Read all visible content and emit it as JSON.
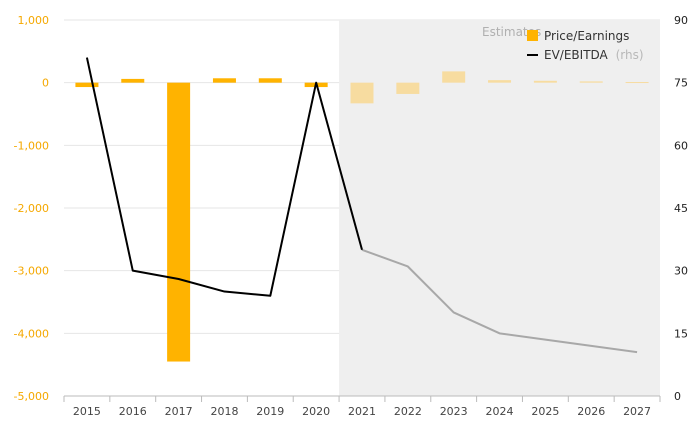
{
  "chart_data": {
    "type": "bar+line",
    "title": "",
    "categories": [
      "2015",
      "2016",
      "2017",
      "2018",
      "2019",
      "2020",
      "2021",
      "2022",
      "2023",
      "2024",
      "2025",
      "2026",
      "2027"
    ],
    "estimate_label": "Estimates",
    "estimate_start_index": 6,
    "left_axis": {
      "ylim": [
        -5000,
        1000
      ],
      "ticks": [
        -5000,
        -4000,
        -3000,
        -2000,
        -1000,
        0,
        1000
      ],
      "tick_labels": [
        "-5,000",
        "-4,000",
        "-3,000",
        "-2,000",
        "-1,000",
        "0",
        "1,000"
      ]
    },
    "right_axis": {
      "ylim": [
        0,
        90
      ],
      "ticks": [
        0,
        15,
        30,
        45,
        60,
        75,
        90
      ],
      "tick_labels": [
        "0",
        "15",
        "30",
        "45",
        "60",
        "75",
        "90"
      ]
    },
    "series": [
      {
        "name": "Price/Earnings",
        "type": "bar",
        "axis": "left",
        "color": "#ffb300",
        "estimate_color": "#f7dca0",
        "values": [
          -70,
          60,
          -4450,
          70,
          70,
          -70,
          -330,
          -180,
          180,
          40,
          30,
          20,
          10
        ]
      },
      {
        "name": "EV/EBITDA",
        "name_suffix": "(rhs)",
        "type": "line",
        "axis": "right",
        "color": "#000000",
        "estimate_color": "#a8a8a8",
        "values": [
          81,
          30,
          28,
          25,
          24,
          75,
          35,
          31,
          20,
          15,
          13.5,
          12,
          10.5
        ]
      }
    ],
    "legend_position": "top-right",
    "grid": true
  }
}
